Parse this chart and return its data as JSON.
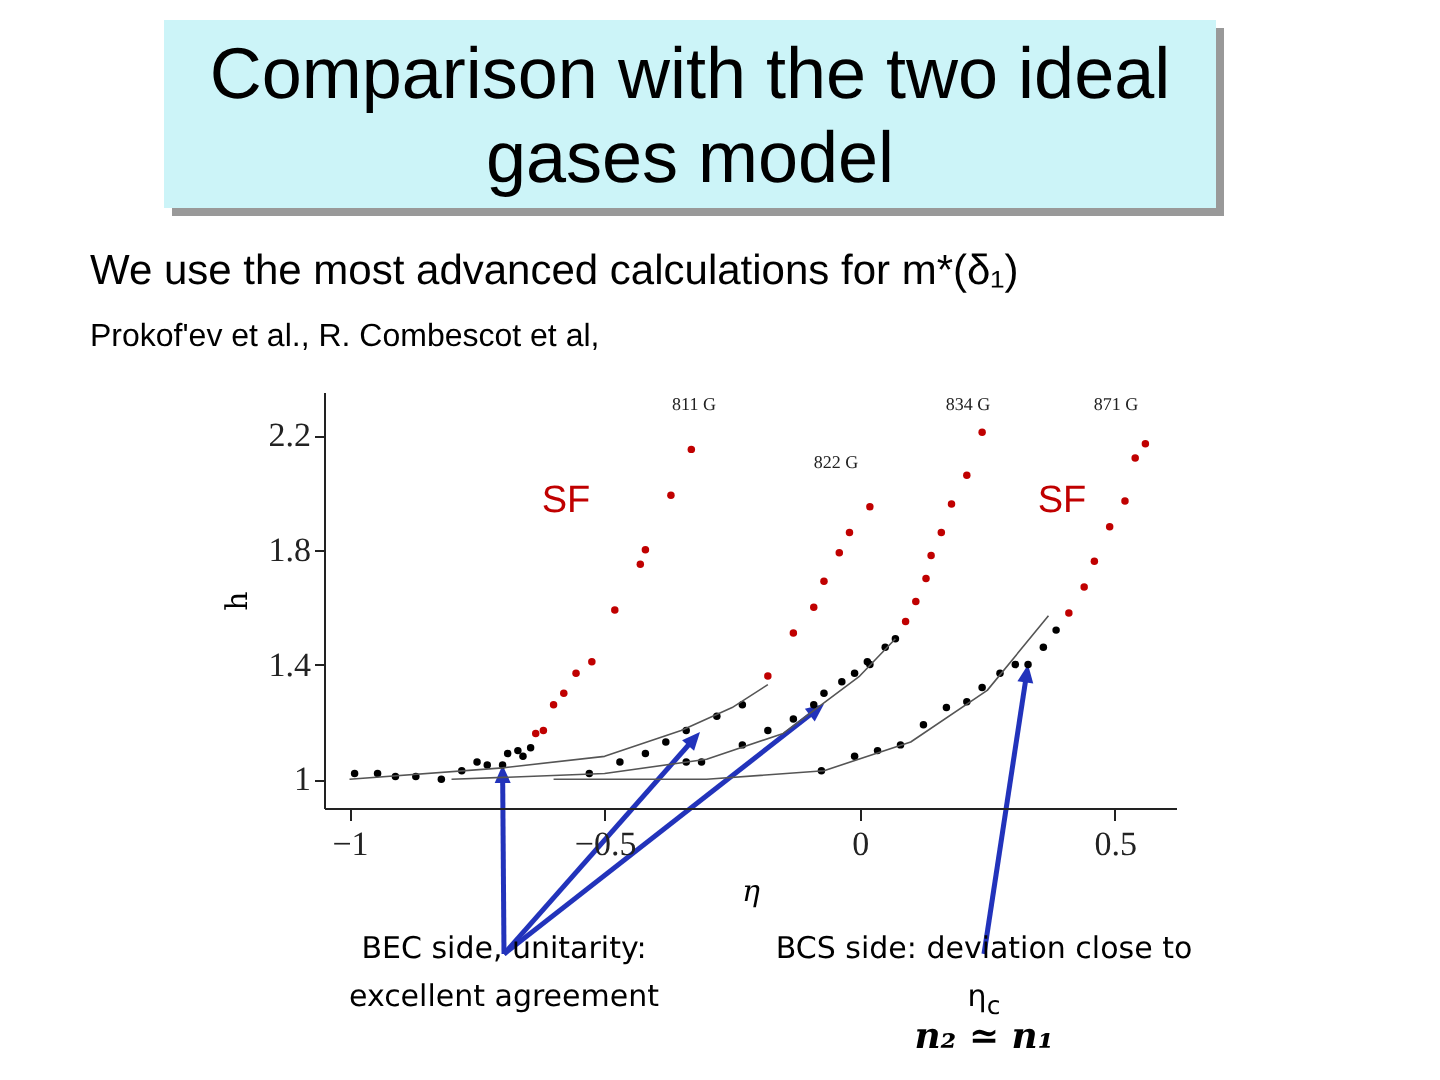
{
  "chart_data": {
    "type": "scatter",
    "title": "Comparison with the two ideal gases model",
    "subtitle": "We use the most advanced calculations for m*(δ₁)",
    "xlabel": "η",
    "ylabel": "h",
    "xlim": [
      -1.05,
      0.62
    ],
    "ylim": [
      0.9,
      2.35
    ],
    "xticks": [
      {
        "value": -1,
        "label": "−1"
      },
      {
        "value": -0.5,
        "label": "−0.5"
      },
      0,
      0.5
    ],
    "yticks": [
      1,
      1.4,
      1.8,
      2.2
    ],
    "grid": false,
    "marker": "circle",
    "series": [
      {
        "color": "#c00000",
        "x": [
          -0.635,
          -0.62,
          -0.6,
          -0.58,
          -0.556,
          -0.525,
          -0.48,
          -0.43,
          -0.42,
          -0.37,
          -0.33,
          -0.18,
          -0.13,
          -0.09,
          -0.07,
          -0.04,
          -0.02,
          0.02,
          0.09,
          0.11,
          0.13,
          0.14,
          0.16,
          0.18,
          0.21,
          0.24,
          0.41,
          0.44,
          0.46,
          0.49,
          0.52,
          0.54,
          0.56
        ],
        "values": [
          1.16,
          1.17,
          1.26,
          1.3,
          1.37,
          1.41,
          1.59,
          1.75,
          1.8,
          1.99,
          2.15,
          1.36,
          1.51,
          1.6,
          1.69,
          1.79,
          1.86,
          1.95,
          1.55,
          1.62,
          1.7,
          1.78,
          1.86,
          1.96,
          2.06,
          2.21,
          1.58,
          1.67,
          1.76,
          1.88,
          1.97,
          2.12,
          2.17
        ]
      },
      {
        "color": "#000000",
        "x": [
          -0.99,
          -0.945,
          -0.91,
          -0.87,
          -0.82,
          -0.78,
          -0.75,
          -0.73,
          -0.7,
          -0.69,
          -0.67,
          -0.66,
          -0.645,
          -0.53,
          -0.47,
          -0.42,
          -0.38,
          -0.34,
          -0.34,
          -0.31,
          -0.28,
          -0.23,
          -0.23,
          -0.18,
          -0.13,
          -0.09,
          -0.075,
          -0.07,
          -0.035,
          -0.01,
          -0.01,
          0.015,
          0.02,
          0.035,
          0.05,
          0.07,
          0.08,
          0.125,
          0.17,
          0.21,
          0.24,
          0.275,
          0.305,
          0.33,
          0.36,
          0.385
        ],
        "values": [
          1.02,
          1.02,
          1.01,
          1.01,
          1.0,
          1.03,
          1.06,
          1.05,
          1.05,
          1.09,
          1.1,
          1.08,
          1.11,
          1.02,
          1.06,
          1.09,
          1.13,
          1.17,
          1.06,
          1.06,
          1.22,
          1.26,
          1.12,
          1.17,
          1.21,
          1.26,
          1.03,
          1.3,
          1.34,
          1.37,
          1.08,
          1.41,
          1.4,
          1.1,
          1.46,
          1.49,
          1.12,
          1.19,
          1.25,
          1.27,
          1.32,
          1.37,
          1.4,
          1.4,
          1.46,
          1.52
        ]
      },
      {
        "type": "line",
        "marker": "none",
        "color": "#555555",
        "x": [
          -1,
          -0.7,
          -0.5,
          -0.35,
          -0.25,
          -0.18
        ],
        "values": [
          1.0,
          1.04,
          1.08,
          1.17,
          1.25,
          1.33
        ]
      },
      {
        "type": "line",
        "marker": "none",
        "color": "#555555",
        "x": [
          -0.8,
          -0.5,
          -0.3,
          -0.15,
          0,
          0.07
        ],
        "values": [
          1.0,
          1.02,
          1.07,
          1.16,
          1.36,
          1.49
        ]
      },
      {
        "type": "line",
        "marker": "none",
        "color": "#555555",
        "x": [
          -0.6,
          -0.3,
          -0.07,
          0.1,
          0.25,
          0.37
        ],
        "values": [
          1.0,
          1.0,
          1.03,
          1.13,
          1.31,
          1.57
        ]
      }
    ],
    "annotations": [
      "811 G",
      "822 G",
      "834 G",
      "871 G",
      "SF",
      "SF",
      "Prokof'ev et al., R. Combescot et al,",
      {
        "text": "BEC side, unitarity: excellent agreement",
        "x": -0.7,
        "y": 1.05
      },
      {
        "text": "BCS side: deviation close to η$_{c}$",
        "x": 0.33,
        "y": 1.4
      },
      "n₂ ≃ n₁"
    ]
  }
}
